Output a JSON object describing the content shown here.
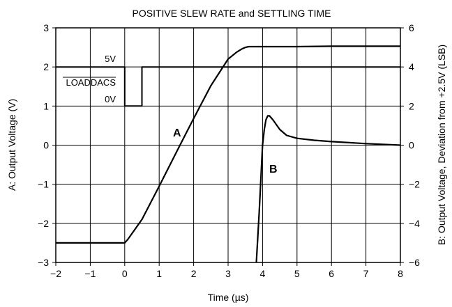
{
  "chart_data": {
    "type": "line",
    "title": "POSITIVE SLEW RATE and SETTLING TIME",
    "xlabel": "Time (µs)",
    "ylabel_left": "A: Output Voltage (V)",
    "ylabel_right": "B: Output Voltage, Deviation from +2.5V (LSB)",
    "xlim": [
      -2,
      8
    ],
    "ylim_left": [
      -3,
      3
    ],
    "ylim_right": [
      -6,
      6
    ],
    "x_ticks": [
      -2,
      -1,
      0,
      1,
      2,
      3,
      4,
      5,
      6,
      7,
      8
    ],
    "x_tick_labels": [
      "−2",
      "−1",
      "0",
      "1",
      "2",
      "3",
      "4",
      "5",
      "6",
      "7",
      "8"
    ],
    "y_left_ticks": [
      -3,
      -2,
      -1,
      0,
      1,
      2,
      3
    ],
    "y_left_tick_labels": [
      "−3",
      "−2",
      "−1",
      "0",
      "1",
      "2",
      "3"
    ],
    "y_right_ticks": [
      -6,
      -4,
      -2,
      0,
      2,
      4,
      6
    ],
    "y_right_tick_labels": [
      "−6",
      "−4",
      "−2",
      "0",
      "2",
      "4",
      "6"
    ],
    "grid": true,
    "series": [
      {
        "name": "A",
        "axis": "left",
        "x": [
          -2,
          0,
          0.1,
          0.5,
          1,
          1.5,
          2,
          2.5,
          3,
          3.25,
          3.4,
          3.5,
          3.6,
          4,
          5,
          6,
          7,
          8
        ],
        "y": [
          -2.5,
          -2.5,
          -2.4,
          -1.9,
          -1.05,
          -0.18,
          0.68,
          1.52,
          2.2,
          2.38,
          2.46,
          2.5,
          2.52,
          2.52,
          2.52,
          2.53,
          2.53,
          2.53
        ]
      },
      {
        "name": "B",
        "axis": "right",
        "x": [
          3.82,
          3.9,
          4.0,
          4.05,
          4.1,
          4.15,
          4.2,
          4.3,
          4.5,
          4.7,
          5.0,
          5.5,
          6.0,
          7.0,
          8.0
        ],
        "y": [
          -6,
          -3.5,
          0,
          0.8,
          1.3,
          1.5,
          1.5,
          1.3,
          0.8,
          0.5,
          0.35,
          0.25,
          0.18,
          0.08,
          0.0
        ]
      },
      {
        "name": "LOADDACS",
        "axis": "left",
        "x": [
          -2,
          0,
          0,
          0.5,
          0.5,
          8
        ],
        "y": [
          2,
          2,
          1,
          1,
          2,
          2
        ]
      }
    ],
    "annotations": {
      "trace_a": "A",
      "trace_b": "B",
      "loaddacs": "LOADDACS",
      "level_high": "5V",
      "level_low": "0V"
    }
  }
}
